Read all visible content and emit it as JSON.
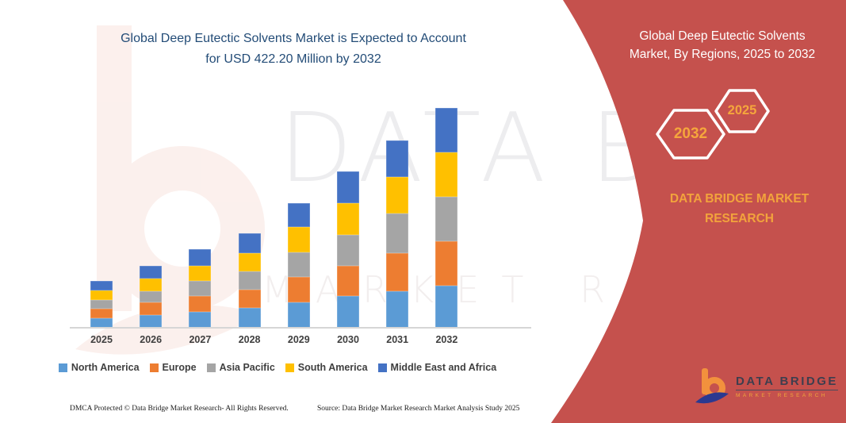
{
  "title": {
    "line1": "Global Deep Eutectic Solvents Market is Expected to Account",
    "line2": "for USD 422.20 Million by 2032"
  },
  "chart_data": {
    "type": "bar",
    "stacked": true,
    "title": "Global Deep Eutectic Solvents Market is Expected to Account for USD 422.20 Million by 2032",
    "unit": "USD Million",
    "categories": [
      "2025",
      "2026",
      "2027",
      "2028",
      "2029",
      "2030",
      "2031",
      "2032"
    ],
    "series": [
      {
        "name": "North America",
        "color": "#5B9BD5",
        "values": [
          18.7,
          24.7,
          31.3,
          37.6,
          49.2,
          61.0,
          70.8,
          81.1
        ]
      },
      {
        "name": "Europe",
        "color": "#ED7D31",
        "values": [
          17.8,
          23.5,
          29.9,
          35.9,
          48.3,
          58.4,
          72.9,
          84.6
        ]
      },
      {
        "name": "Asia Pacific",
        "color": "#A5A5A5",
        "values": [
          16.8,
          22.4,
          28.4,
          34.2,
          47.2,
          58.4,
          76.4,
          85.7
        ]
      },
      {
        "name": "South America",
        "color": "#FFC000",
        "values": [
          17.8,
          23.6,
          29.9,
          36.0,
          49.2,
          61.0,
          69.9,
          86.2
        ]
      },
      {
        "name": "Middle East and Africa",
        "color": "#4472C4",
        "values": [
          18.8,
          24.7,
          31.4,
          37.7,
          45.7,
          62.0,
          70.3,
          84.6
        ]
      }
    ],
    "totals": [
      89.9,
      118.9,
      150.9,
      181.4,
      239.6,
      300.8,
      360.3,
      422.2
    ],
    "ylim": [
      0,
      440
    ],
    "y_axis_visible": false,
    "grid": false,
    "legend_position": "bottom"
  },
  "panel": {
    "heading_line1": "Global Deep Eutectic Solvents",
    "heading_line2": "Market, By Regions, 2025 to 2032",
    "hex_back_year": "2032",
    "hex_front_year": "2025",
    "brand_line1": "DATA BRIDGE MARKET",
    "brand_line2": "RESEARCH",
    "background_color": "#C5514D",
    "accent_color": "#F5A63C"
  },
  "watermark": {
    "text1": "DATA BRIDGE",
    "text2": "MARKET RESEARCH"
  },
  "logo": {
    "title": "DATA BRIDGE",
    "subtitle": "MARKET RESEARCH"
  },
  "footer": {
    "left": "DMCA Protected © Data Bridge Market Research-  All Rights Reserved.",
    "right": "Source: Data Bridge Market Research  Market Analysis Study 2025"
  }
}
